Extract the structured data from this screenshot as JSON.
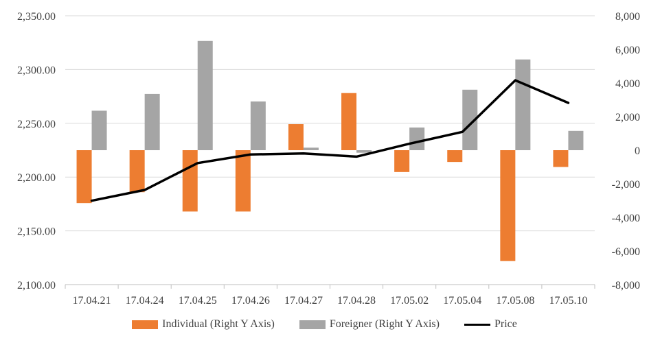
{
  "chart_data": {
    "type": "bar+line",
    "categories": [
      "17.04.21",
      "17.04.24",
      "17.04.25",
      "17.04.26",
      "17.04.27",
      "17.04.28",
      "17.05.02",
      "17.05.04",
      "17.05.08",
      "17.05.10"
    ],
    "series": [
      {
        "name": "Individual (Right Y Axis)",
        "type": "bar",
        "axis": "right",
        "color": "#ED7D31",
        "values": [
          -3150,
          -2500,
          -3650,
          -3650,
          1550,
          3400,
          -1300,
          -700,
          -6600,
          -1000
        ]
      },
      {
        "name": "Foreigner (Right Y Axis)",
        "type": "bar",
        "axis": "right",
        "color": "#A5A5A5",
        "values": [
          2350,
          3350,
          6500,
          2900,
          150,
          -150,
          1350,
          3600,
          5400,
          1150
        ]
      },
      {
        "name": "Price",
        "type": "line",
        "axis": "left",
        "color": "#000000",
        "values": [
          2178,
          2188,
          2213,
          2221,
          2222,
          2219,
          2231,
          2242,
          2290,
          2269
        ]
      }
    ],
    "left_axis": {
      "min": 2100,
      "max": 2350,
      "step": 50,
      "tick_labels": [
        "2,100.00",
        "2,150.00",
        "2,200.00",
        "2,250.00",
        "2,300.00",
        "2,350.00"
      ]
    },
    "right_axis": {
      "min": -8000,
      "max": 8000,
      "step": 2000,
      "tick_labels": [
        "-8,000",
        "-6,000",
        "-4,000",
        "-2,000",
        "0",
        "2,000",
        "4,000",
        "6,000",
        "8,000"
      ]
    },
    "grid": true,
    "legend_position": "bottom"
  }
}
